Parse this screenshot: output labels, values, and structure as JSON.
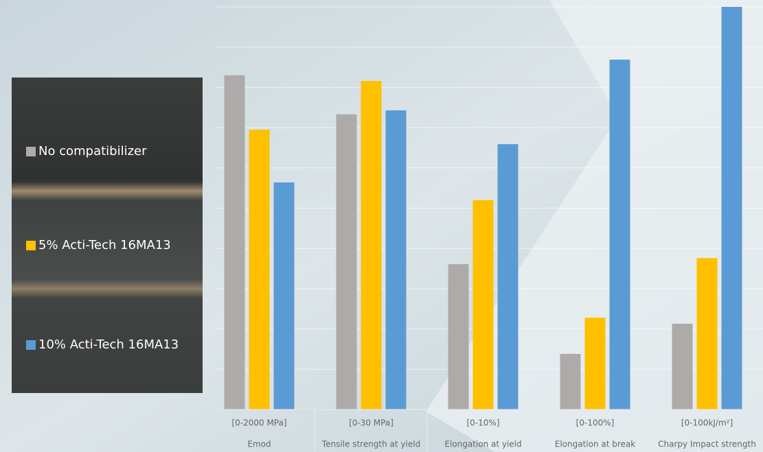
{
  "chart_data": {
    "type": "bar",
    "categories": [
      "Emod",
      "Tensile strength at yield",
      "Elongation at yield",
      "Elongation at break",
      "Charpy Impact strength"
    ],
    "ranges": [
      "[0-2000 MPa]",
      "[0-30 MPa]",
      "[0-10%]",
      "[0-100%]",
      "[0-100kJ/m²]"
    ],
    "series": [
      {
        "name": "No compatibilizer",
        "color": "#aeaaaa",
        "values": [
          83,
          73.3,
          36.1,
          13.8,
          21.3
        ]
      },
      {
        "name": "5% Acti-Tech 16MA13",
        "color": "#ffc000",
        "values": [
          69.5,
          81.6,
          52,
          22.8,
          37.6
        ]
      },
      {
        "name": "10% Acti-Tech 16MA13",
        "color": "#5b9bd5",
        "values": [
          56.4,
          74.3,
          65.9,
          86.9,
          100
        ]
      }
    ],
    "ylim": [
      0,
      100
    ],
    "yticks": [
      0,
      10,
      20,
      30,
      40,
      50,
      60,
      70,
      80,
      90,
      100
    ],
    "grid": true
  }
}
